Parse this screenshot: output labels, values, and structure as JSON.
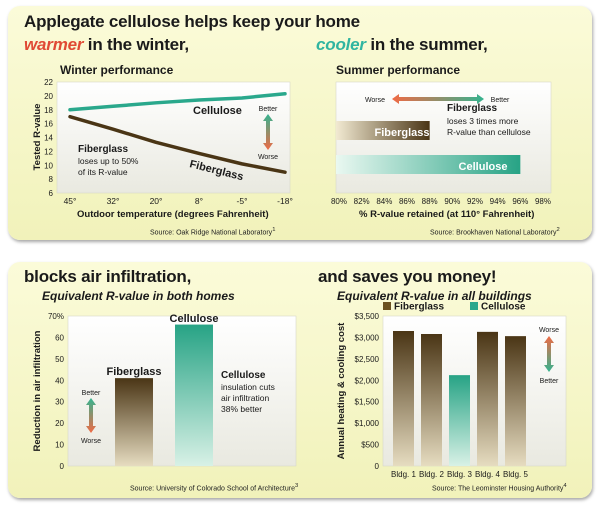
{
  "top": {
    "headline_line1": "Applegate cellulose helps keep your home",
    "headline_warmer": "warmer",
    "headline_warmer_rest": " in the winter,",
    "headline_cooler": "cooler",
    "headline_cooler_rest": " in the summer,",
    "colors": {
      "warmer": "#e04a35",
      "cooler": "#30b5a0"
    }
  },
  "bottom": {
    "left_headline": "blocks air infiltration,",
    "left_subhead": "Equivalent R-value in both homes",
    "right_headline": "and saves you money!",
    "right_subhead": "Equivalent R-value in all buildings"
  },
  "chart_data": [
    {
      "type": "line",
      "title": "Winter performance",
      "xlabel": "Outdoor temperature (degrees Fahrenheit)",
      "ylabel": "Tested R-value",
      "categories": [
        "45°",
        "32°",
        "20°",
        "8°",
        "-5°",
        "-18°"
      ],
      "ylim": [
        6,
        22
      ],
      "yticks": [
        6,
        8,
        10,
        12,
        14,
        16,
        18,
        20,
        22
      ],
      "series": [
        {
          "name": "Cellulose",
          "color": "#2aa88c",
          "values": [
            18.0,
            18.5,
            19.0,
            19.4,
            19.7,
            20.3
          ]
        },
        {
          "name": "Fiberglass",
          "color": "#4a3515",
          "values": [
            17.0,
            15.2,
            13.3,
            11.7,
            10.2,
            9.0
          ]
        }
      ],
      "annotation": {
        "title": "Fiberglass",
        "line1": "loses up to 50%",
        "line2": "of its R-value"
      },
      "indicator": {
        "better": "Better",
        "worse": "Worse"
      },
      "source": "Source: Oak Ridge National Laboratory",
      "footnote": "1"
    },
    {
      "type": "bar",
      "orientation": "horizontal",
      "title": "Summer performance",
      "xlabel": "% R-value retained (at 110° Fahrenheit)",
      "xlim": [
        80,
        98
      ],
      "xticks": [
        "80%",
        "82%",
        "84%",
        "86%",
        "88%",
        "90%",
        "92%",
        "94%",
        "96%",
        "98%"
      ],
      "series": [
        {
          "name": "Fiberglass",
          "color": "#6b5120",
          "value": 88
        },
        {
          "name": "Cellulose",
          "color": "#2aa88c",
          "value": 96
        }
      ],
      "annotation": {
        "title": "Fiberglass",
        "line1": "loses 3 times more",
        "line2": "R-value than cellulose"
      },
      "indicator": {
        "worse": "Worse",
        "better": "Better"
      },
      "source": "Source: Brookhaven National Laboratory",
      "footnote": "2"
    },
    {
      "type": "bar",
      "ylabel": "Reduction in air infiltration",
      "ylim": [
        0,
        70
      ],
      "yticks": [
        "0",
        "10",
        "20",
        "30",
        "40",
        "50",
        "60",
        "70%"
      ],
      "series": [
        {
          "name": "Fiberglass",
          "color": "#6b5120",
          "value": 41
        },
        {
          "name": "Cellulose",
          "color": "#2aa88c",
          "value": 66
        }
      ],
      "annotation": {
        "title": "Cellulose",
        "line1": "insulation cuts",
        "line2": "air infiltration",
        "line3": "38% better"
      },
      "indicator": {
        "better": "Better",
        "worse": "Worse"
      },
      "source": "Source: University of Colorado School of Architecture",
      "footnote": "3"
    },
    {
      "type": "bar",
      "ylabel": "Annual heating & cooling cost",
      "categories": [
        "Bldg. 1",
        "Bldg. 2",
        "Bldg. 3",
        "Bldg. 4",
        "Bldg. 5"
      ],
      "ylim": [
        0,
        3500
      ],
      "yticks": [
        "0",
        "$500",
        "$1,000",
        "$1,500",
        "$2,000",
        "$2,500",
        "$3,000",
        "$3,500"
      ],
      "legend": [
        {
          "name": "Fiberglass",
          "color": "#6b5120"
        },
        {
          "name": "Cellulose",
          "color": "#2aa88c"
        }
      ],
      "values": [
        3150,
        3080,
        2120,
        3130,
        3030
      ],
      "bar_material": [
        "Fiberglass",
        "Fiberglass",
        "Cellulose",
        "Fiberglass",
        "Fiberglass"
      ],
      "indicator": {
        "worse": "Worse",
        "better": "Better"
      },
      "source": "Source: The Leominster Housing Authority",
      "footnote": "4"
    }
  ]
}
